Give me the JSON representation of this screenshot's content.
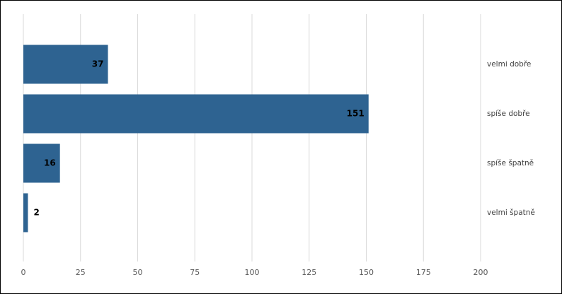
{
  "chart_data": {
    "type": "bar",
    "orientation": "horizontal",
    "categories": [
      "velmi dobře",
      "spíše dobře",
      "spíše špatně",
      "velmi špatně"
    ],
    "values": [
      37,
      151,
      16,
      2
    ],
    "color": "#2e6391",
    "xlim": [
      0,
      200
    ],
    "xticks": [
      0,
      25,
      50,
      75,
      100,
      125,
      150,
      175,
      200
    ],
    "grid": true
  }
}
